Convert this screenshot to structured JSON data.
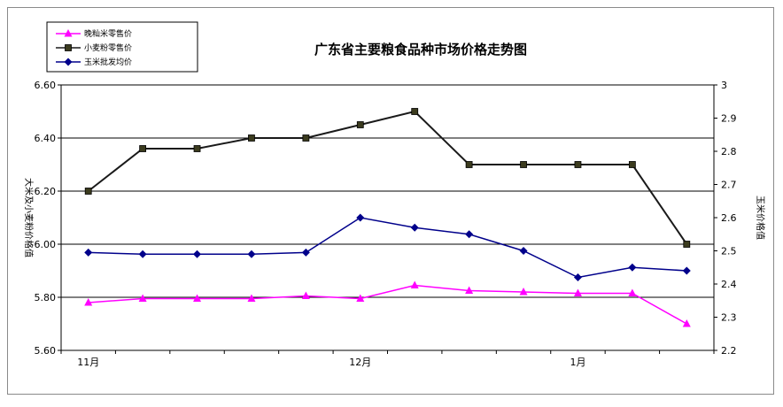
{
  "chart_data": {
    "type": "line",
    "title": "广东省主要粮食品种市场价格走势图",
    "ylabel_left": "大米及小麦粉价格值",
    "ylabel_right": "玉米价格值",
    "x_tick_labels": [
      "11月",
      "12月",
      "1月"
    ],
    "y_left": {
      "min": 5.6,
      "max": 6.6,
      "ticks": [
        "5.60",
        "5.80",
        "6.00",
        "6.20",
        "6.40",
        "6.60"
      ]
    },
    "y_right": {
      "min": 2.2,
      "max": 3.0,
      "ticks": [
        "2.2",
        "2.3",
        "2.4",
        "2.5",
        "2.6",
        "2.7",
        "2.8",
        "2.9",
        "3"
      ]
    },
    "grid": "horizontal",
    "legend_position": "top-left",
    "series": [
      {
        "name": "晚籼米零售价",
        "axis": "left",
        "color": "#ff00ff",
        "marker": "triangle",
        "values": [
          5.78,
          5.795,
          5.795,
          5.795,
          5.805,
          5.795,
          5.845,
          5.825,
          5.82,
          5.815,
          5.815,
          5.7
        ]
      },
      {
        "name": "小麦粉零售价",
        "axis": "left",
        "color": "#1a1a1a",
        "marker": "square",
        "values": [
          6.2,
          6.36,
          6.36,
          6.4,
          6.4,
          6.45,
          6.5,
          6.3,
          6.3,
          6.3,
          6.3,
          6.0
        ]
      },
      {
        "name": "玉米批发均价",
        "axis": "right",
        "color": "#00008b",
        "marker": "diamond",
        "values": [
          2.495,
          2.49,
          2.49,
          2.49,
          2.495,
          2.6,
          2.57,
          2.55,
          2.5,
          2.42,
          2.45,
          2.44
        ]
      }
    ]
  }
}
